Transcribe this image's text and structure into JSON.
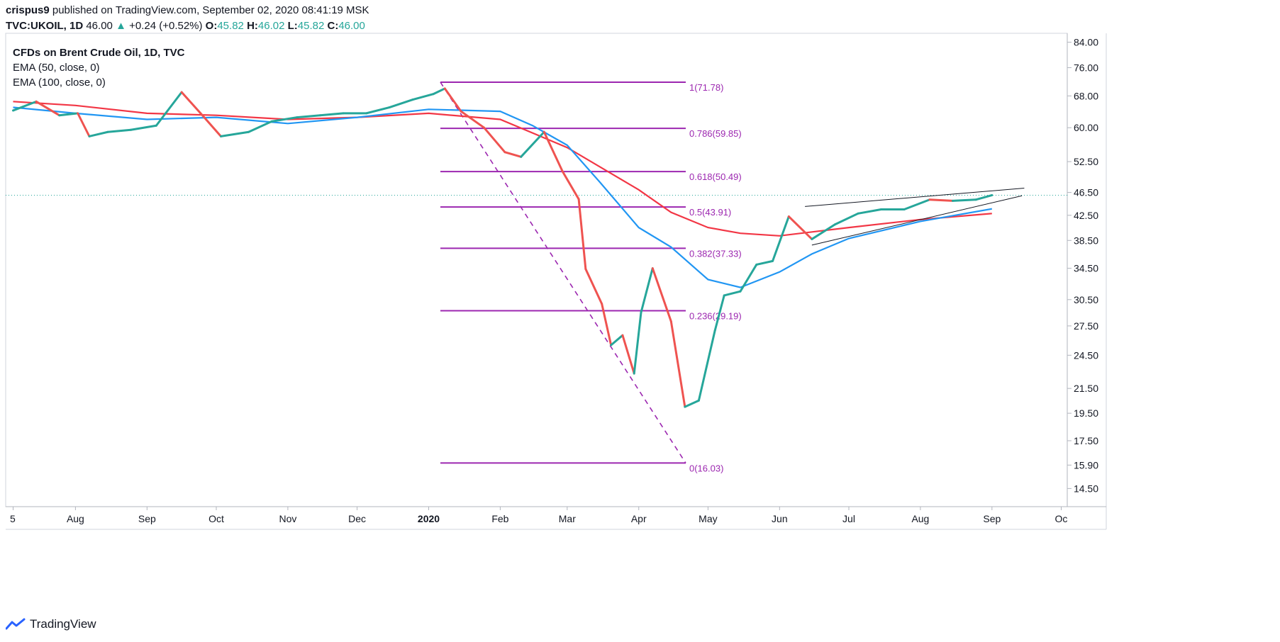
{
  "header": {
    "author": "crispus9",
    "published_text": "published on TradingView.com, September 02, 2020 08:41:19 MSK",
    "symbol": "TVC:UKOIL, 1D",
    "price": "46.00",
    "change": "+0.24 (+0.52%)",
    "o_label": "O:",
    "o_value": "45.82",
    "h_label": "H:",
    "h_value": "46.02",
    "l_label": "L:",
    "l_value": "45.82",
    "c_label": "C:",
    "c_value": "46.00"
  },
  "legend": {
    "title": "CFDs on Brent Crude Oil, 1D, TVC",
    "ema50": "EMA (50, close, 0)",
    "ema100": "EMA (100, close, 0)"
  },
  "footer": {
    "brand": "TradingView"
  },
  "colors": {
    "up": "#26a69a",
    "down": "#ef5350",
    "ema50": "#2196f3",
    "ema100": "#f23645",
    "fib": "#9c27b0",
    "grid": "#e0e3eb"
  },
  "chart_data": {
    "type": "candlestick",
    "y_scale": "log",
    "ylim": [
      13.5,
      87
    ],
    "y_ticks": [
      "84.00",
      "76.00",
      "68.00",
      "60.00",
      "52.50",
      "46.50",
      "42.50",
      "38.50",
      "34.50",
      "30.50",
      "27.50",
      "24.50",
      "21.50",
      "19.50",
      "17.50",
      "15.90",
      "14.50"
    ],
    "x_ticks": [
      "5",
      "Aug",
      "Sep",
      "Oct",
      "Nov",
      "Dec",
      "2020",
      "Feb",
      "Mar",
      "Apr",
      "May",
      "Jun",
      "Jul",
      "Aug",
      "Sep",
      "Oc"
    ],
    "last_price": 46.0,
    "fib": [
      {
        "label": "1(71.78)",
        "value": 71.78
      },
      {
        "label": "0.786(59.85)",
        "value": 59.85
      },
      {
        "label": "0.618(50.49)",
        "value": 50.49
      },
      {
        "label": "0.5(43.91)",
        "value": 43.91
      },
      {
        "label": "0.382(37.33)",
        "value": 37.33
      },
      {
        "label": "0.236(29.19)",
        "value": 29.19
      },
      {
        "label": "0(16.03)",
        "value": 16.03
      }
    ],
    "close_path": [
      [
        "2019-07-05",
        64.2
      ],
      [
        "2019-07-15",
        66.5
      ],
      [
        "2019-07-25",
        63.0
      ],
      [
        "2019-08-02",
        63.5
      ],
      [
        "2019-08-07",
        58.0
      ],
      [
        "2019-08-15",
        59.0
      ],
      [
        "2019-08-25",
        59.5
      ],
      [
        "2019-09-05",
        60.5
      ],
      [
        "2019-09-16",
        69.0
      ],
      [
        "2019-09-25",
        63.0
      ],
      [
        "2019-10-03",
        58.0
      ],
      [
        "2019-10-15",
        59.0
      ],
      [
        "2019-10-25",
        61.5
      ],
      [
        "2019-11-05",
        62.5
      ],
      [
        "2019-11-15",
        63.0
      ],
      [
        "2019-11-25",
        63.5
      ],
      [
        "2019-12-05",
        63.5
      ],
      [
        "2019-12-15",
        65.0
      ],
      [
        "2019-12-25",
        67.0
      ],
      [
        "2020-01-03",
        68.5
      ],
      [
        "2020-01-08",
        70.0
      ],
      [
        "2020-01-15",
        64.0
      ],
      [
        "2020-01-25",
        60.0
      ],
      [
        "2020-02-03",
        54.5
      ],
      [
        "2020-02-10",
        53.5
      ],
      [
        "2020-02-20",
        59.0
      ],
      [
        "2020-02-28",
        50.5
      ],
      [
        "2020-03-06",
        45.3
      ],
      [
        "2020-03-09",
        34.4
      ],
      [
        "2020-03-16",
        30.0
      ],
      [
        "2020-03-20",
        25.5
      ],
      [
        "2020-03-25",
        26.5
      ],
      [
        "2020-03-30",
        22.8
      ],
      [
        "2020-04-02",
        29.0
      ],
      [
        "2020-04-07",
        34.5
      ],
      [
        "2020-04-15",
        28.0
      ],
      [
        "2020-04-21",
        20.0
      ],
      [
        "2020-04-27",
        20.5
      ],
      [
        "2020-05-04",
        27.0
      ],
      [
        "2020-05-08",
        31.0
      ],
      [
        "2020-05-15",
        31.5
      ],
      [
        "2020-05-22",
        35.0
      ],
      [
        "2020-05-29",
        35.5
      ],
      [
        "2020-06-05",
        42.3
      ],
      [
        "2020-06-15",
        38.7
      ],
      [
        "2020-06-25",
        41.0
      ],
      [
        "2020-07-05",
        42.8
      ],
      [
        "2020-07-15",
        43.5
      ],
      [
        "2020-07-25",
        43.5
      ],
      [
        "2020-08-05",
        45.2
      ],
      [
        "2020-08-15",
        45.0
      ],
      [
        "2020-08-25",
        45.2
      ],
      [
        "2020-09-01",
        46.0
      ]
    ],
    "ema50_path": [
      [
        "2019-07-05",
        65.0
      ],
      [
        "2019-08-01",
        63.5
      ],
      [
        "2019-09-01",
        62.0
      ],
      [
        "2019-10-01",
        62.5
      ],
      [
        "2019-11-01",
        61.0
      ],
      [
        "2019-12-01",
        62.5
      ],
      [
        "2020-01-01",
        64.5
      ],
      [
        "2020-02-01",
        64.0
      ],
      [
        "2020-02-15",
        60.5
      ],
      [
        "2020-03-01",
        56.0
      ],
      [
        "2020-03-15",
        48.5
      ],
      [
        "2020-04-01",
        40.5
      ],
      [
        "2020-04-15",
        37.5
      ],
      [
        "2020-05-01",
        33.0
      ],
      [
        "2020-05-15",
        32.0
      ],
      [
        "2020-06-01",
        34.0
      ],
      [
        "2020-06-15",
        36.5
      ],
      [
        "2020-07-01",
        38.8
      ],
      [
        "2020-08-01",
        41.5
      ],
      [
        "2020-09-01",
        43.6
      ]
    ],
    "ema100_path": [
      [
        "2019-07-05",
        66.5
      ],
      [
        "2019-08-01",
        65.5
      ],
      [
        "2019-09-01",
        63.5
      ],
      [
        "2019-10-01",
        63.0
      ],
      [
        "2019-11-01",
        62.0
      ],
      [
        "2019-12-01",
        62.5
      ],
      [
        "2020-01-01",
        63.5
      ],
      [
        "2020-02-01",
        62.0
      ],
      [
        "2020-03-01",
        55.5
      ],
      [
        "2020-04-01",
        47.0
      ],
      [
        "2020-04-15",
        43.0
      ],
      [
        "2020-05-01",
        40.5
      ],
      [
        "2020-05-15",
        39.6
      ],
      [
        "2020-06-01",
        39.2
      ],
      [
        "2020-07-01",
        40.5
      ],
      [
        "2020-08-01",
        41.8
      ],
      [
        "2020-09-01",
        42.8
      ]
    ],
    "wedge_upper": [
      [
        "2020-06-12",
        44.0
      ],
      [
        "2020-09-15",
        47.3
      ]
    ],
    "wedge_lower": [
      [
        "2020-06-15",
        37.8
      ],
      [
        "2020-09-14",
        45.9
      ]
    ]
  }
}
